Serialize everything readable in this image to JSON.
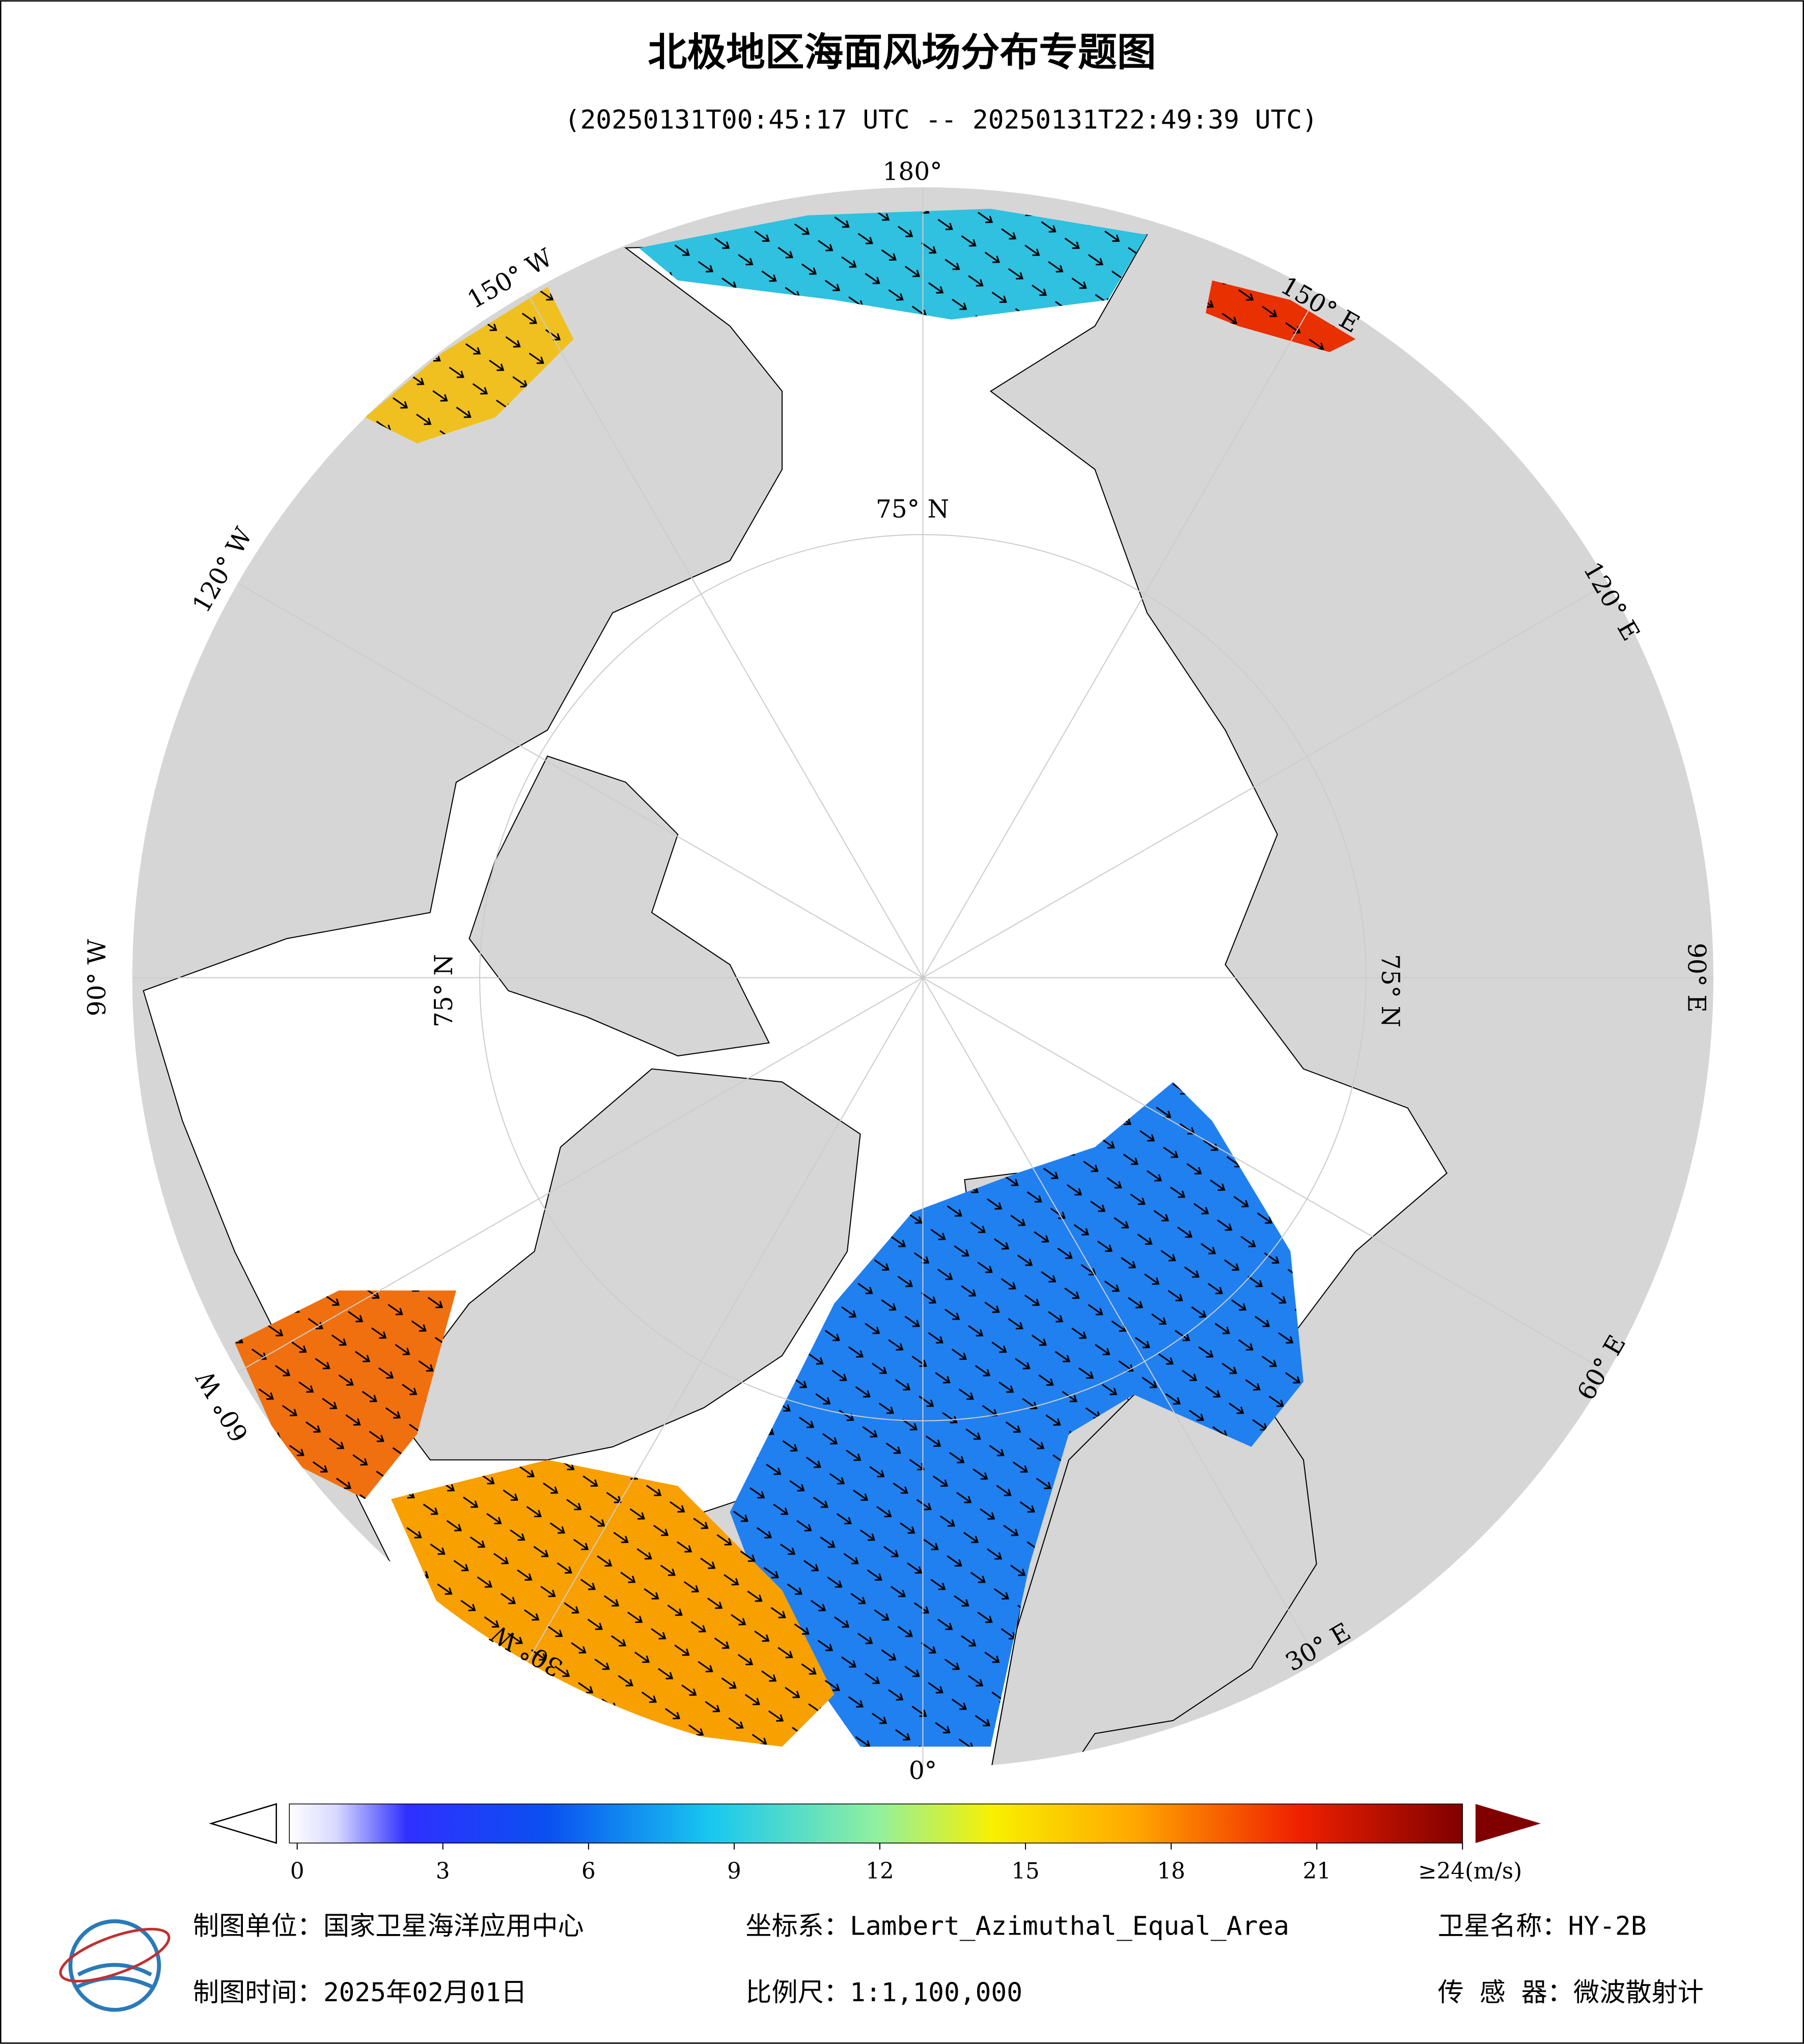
{
  "header": {
    "title": "北极地区海面风场分布专题图",
    "subtitle": "(20250131T00:45:17 UTC -- 20250131T22:49:39 UTC)"
  },
  "map": {
    "longitude_labels": [
      "180°",
      "150° E",
      "120° E",
      "90° E",
      "60° E",
      "30° E",
      "0°",
      "30° W",
      "60° W",
      "90° W",
      "120° W",
      "150° W"
    ],
    "latitude_label": "75° N"
  },
  "colorbar": {
    "lim": [
      0,
      24
    ],
    "ticks": [
      0,
      3,
      6,
      9,
      12,
      15,
      18,
      21,
      {
        "value": 24,
        "label": "≥24(m/s)"
      }
    ]
  },
  "footer": {
    "unit": "制图单位：国家卫星海洋应用中心",
    "coordinate_system": "坐标系：Lambert_Azimuthal_Equal_Area",
    "satellite": "卫星名称：HY-2B",
    "date": "制图时间：2025年02月01日",
    "scale": "比例尺：1:1,100,000",
    "sensor": "传 感 器：微波散射计"
  }
}
